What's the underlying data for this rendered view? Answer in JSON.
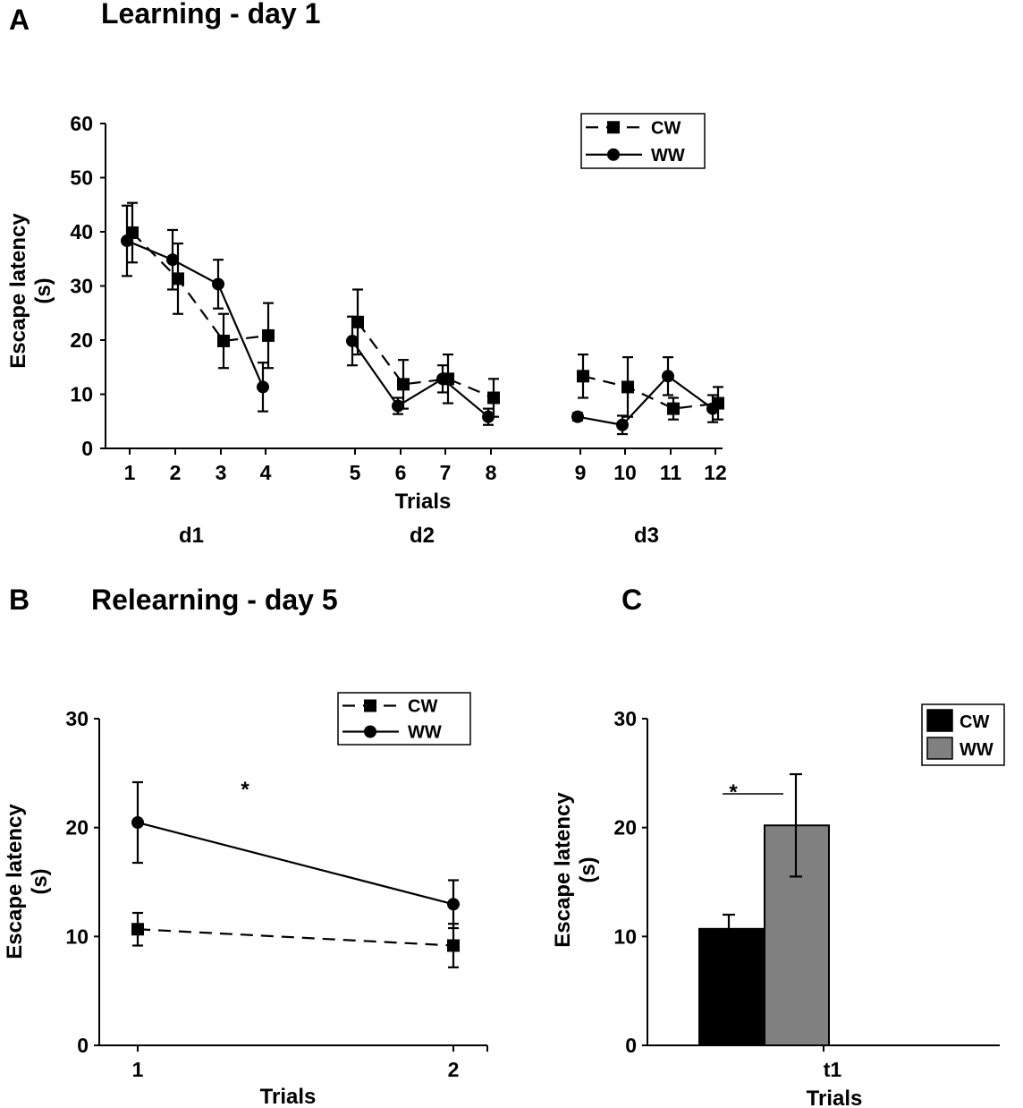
{
  "chart_data": [
    {
      "panel": "A",
      "type": "line",
      "title": "Learning -  day 1",
      "xlabel": "Trials",
      "ylabel": "Escape latency (s)",
      "ylabel_lines": [
        "Escape latency",
        "(s)"
      ],
      "ylim": [
        0,
        60
      ],
      "yticks": [
        0,
        10,
        20,
        30,
        40,
        50,
        60
      ],
      "x": [
        1,
        2,
        3,
        4,
        5,
        6,
        7,
        8,
        9,
        10,
        11,
        12
      ],
      "day_groups": [
        {
          "label": "d1",
          "trials": [
            1,
            2,
            3,
            4
          ]
        },
        {
          "label": "d2",
          "trials": [
            5,
            6,
            7,
            8
          ]
        },
        {
          "label": "d3",
          "trials": [
            9,
            10,
            11,
            12
          ]
        }
      ],
      "legend": [
        {
          "name": "CW",
          "marker": "square",
          "line": "dashed"
        },
        {
          "name": "WW",
          "marker": "circle",
          "line": "solid"
        }
      ],
      "series": [
        {
          "name": "CW",
          "values": [
            40.5,
            32,
            20.5,
            21.5,
            24,
            12.5,
            13.5,
            10,
            14,
            12,
            8,
            9
          ],
          "errors": [
            5.5,
            6.5,
            5,
            6,
            6,
            4.5,
            4.5,
            3.5,
            4,
            5.5,
            2,
            3
          ]
        },
        {
          "name": "WW",
          "values": [
            39,
            35.5,
            31,
            12,
            20.5,
            8.5,
            13.5,
            6.5,
            6.5,
            5,
            14,
            8
          ],
          "errors": [
            6.5,
            5.5,
            4.5,
            4.5,
            4.5,
            1.5,
            2.5,
            1.5,
            0.7,
            1.7,
            3.5,
            2.5
          ]
        }
      ]
    },
    {
      "panel": "B",
      "type": "line",
      "title": "Relearning -  day 5",
      "xlabel": "Trials",
      "ylabel": "Escape latency (s)",
      "ylabel_lines": [
        "Escape latency",
        "(s)"
      ],
      "ylim": [
        0,
        30
      ],
      "yticks": [
        0,
        10,
        20,
        30
      ],
      "x": [
        1,
        2
      ],
      "annotation": "*",
      "legend": [
        {
          "name": "CW",
          "marker": "square",
          "line": "dashed"
        },
        {
          "name": "WW",
          "marker": "circle",
          "line": "solid"
        }
      ],
      "series": [
        {
          "name": "CW",
          "values": [
            10.5,
            9
          ],
          "errors": [
            1.5,
            2
          ]
        },
        {
          "name": "WW",
          "values": [
            20.3,
            12.8
          ],
          "errors": [
            3.7,
            2.2
          ]
        }
      ]
    },
    {
      "panel": "C",
      "type": "bar",
      "xlabel": "Trials",
      "ylabel": "Escape latency (s)",
      "ylabel_lines": [
        "Escape latency",
        "(s)"
      ],
      "ylim": [
        0,
        30
      ],
      "yticks": [
        0,
        10,
        20,
        30
      ],
      "categories": [
        "t1"
      ],
      "annotation": "*",
      "legend": [
        {
          "name": "CW",
          "color": "#000000"
        },
        {
          "name": "WW",
          "color": "#808080"
        }
      ],
      "series": [
        {
          "name": "CW",
          "values": [
            10.7
          ],
          "errors": [
            1.3
          ],
          "color": "#000000"
        },
        {
          "name": "WW",
          "values": [
            20.2
          ],
          "errors": [
            4.7
          ],
          "color": "#808080"
        }
      ]
    }
  ]
}
